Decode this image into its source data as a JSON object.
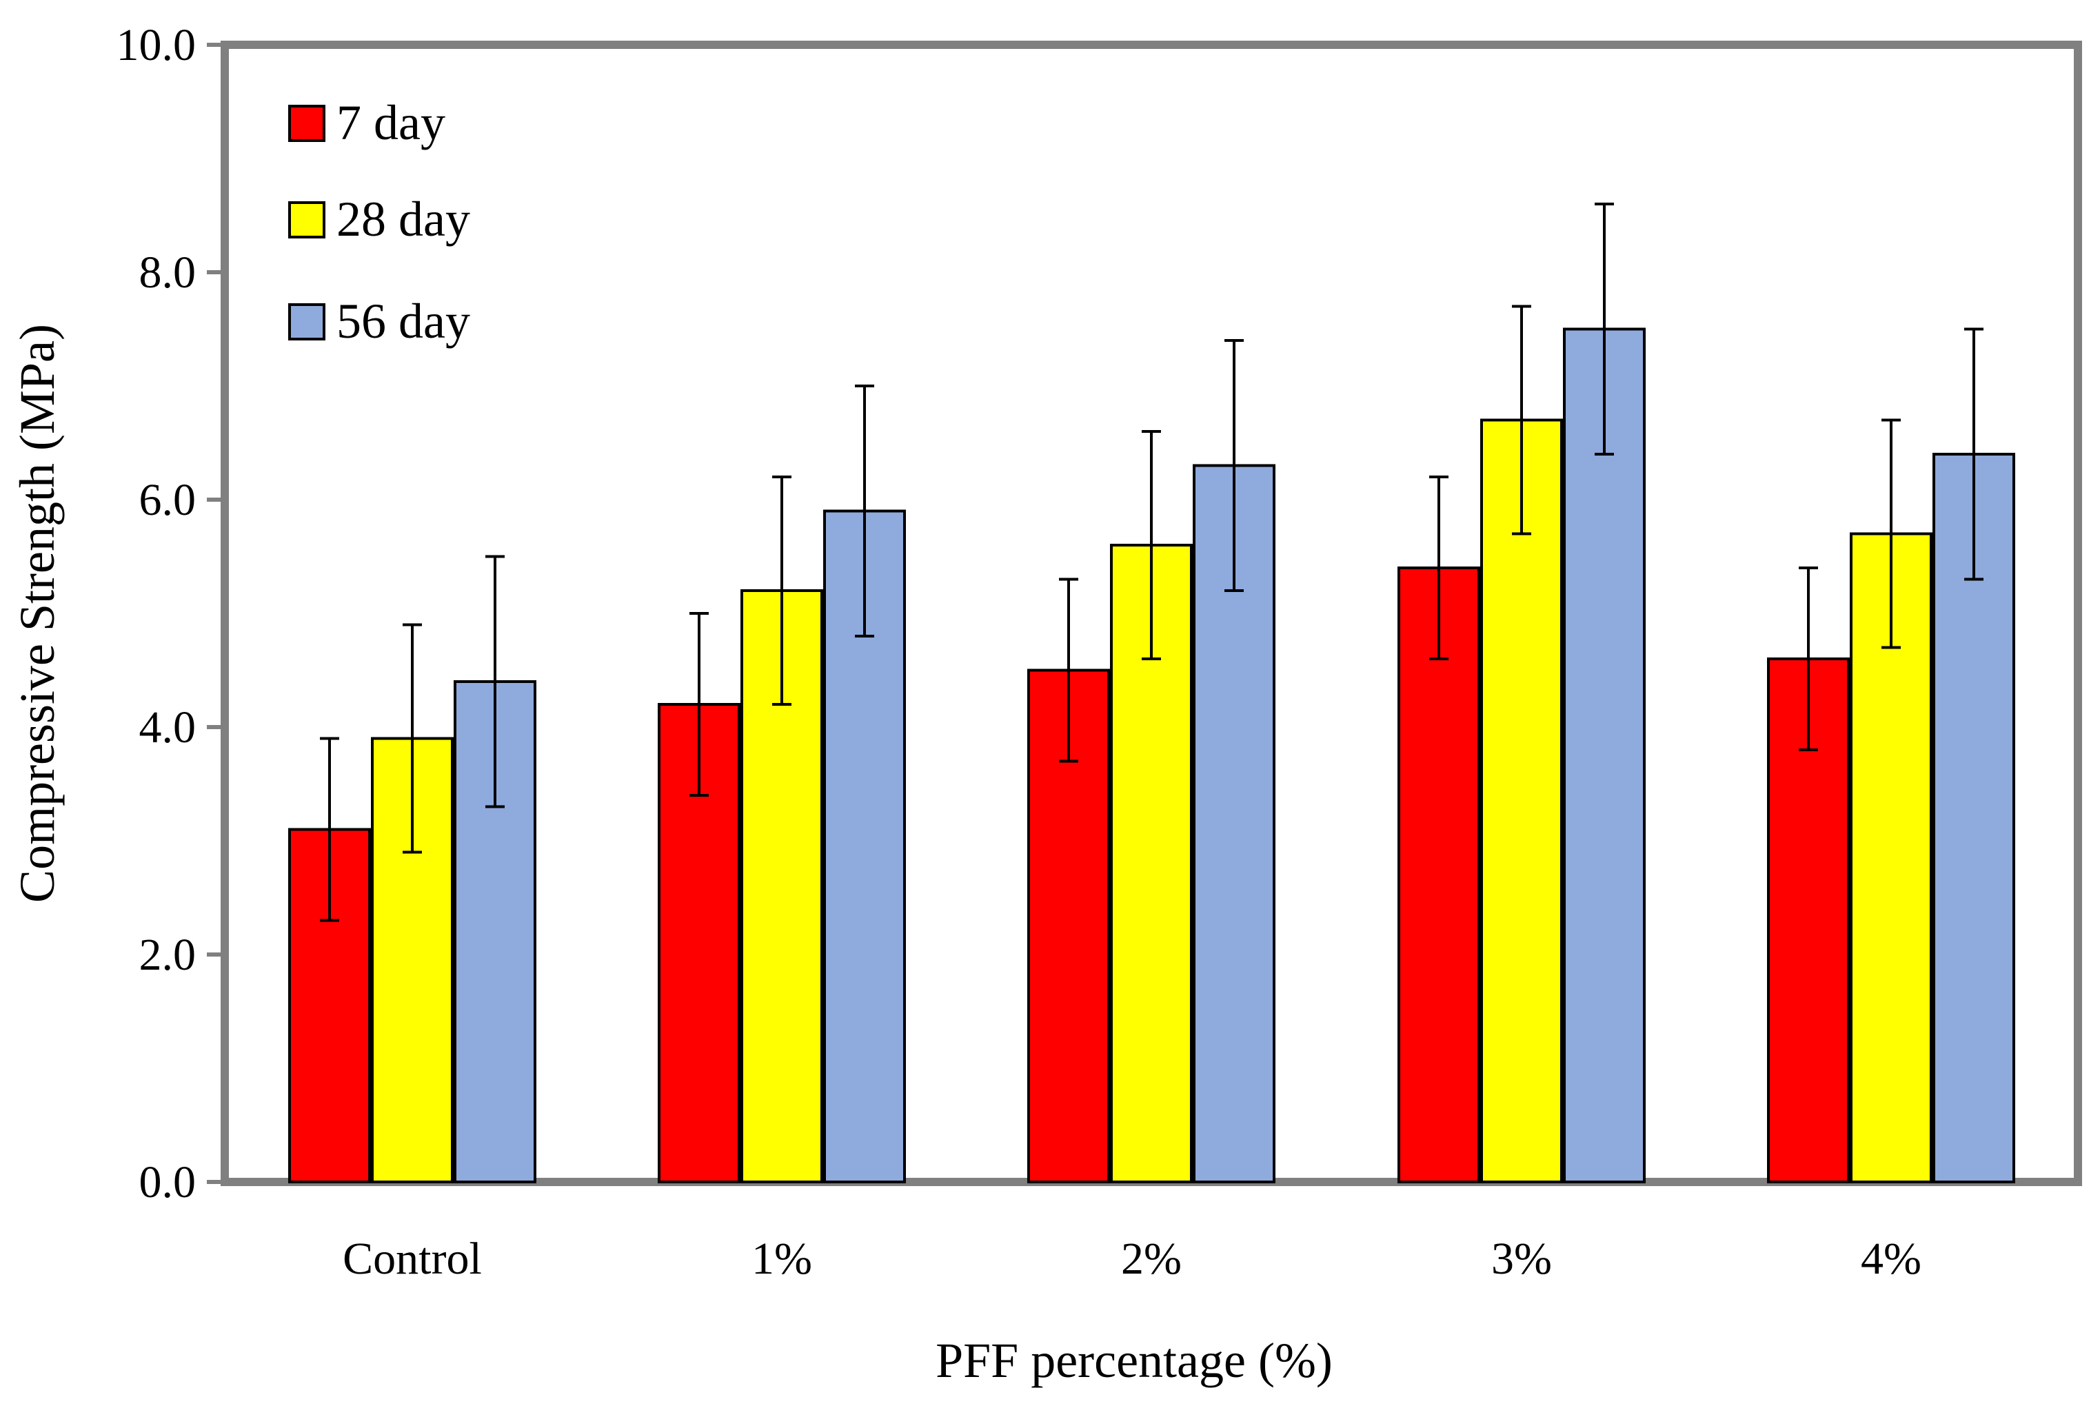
{
  "chart_data": {
    "type": "bar",
    "title": "",
    "xlabel": "PFF percentage (%)",
    "ylabel": "Compressive Strength (MPa)",
    "categories": [
      "Control",
      "1%",
      "2%",
      "3%",
      "4%"
    ],
    "ylim": [
      0,
      10
    ],
    "yticks": [
      0,
      2,
      4,
      6,
      8,
      10
    ],
    "ytick_labels": [
      "0.0",
      "2.0",
      "4.0",
      "6.0",
      "8.0",
      "10.0"
    ],
    "grid": false,
    "legend_position": "top-left",
    "series": [
      {
        "name": "7 day",
        "color": "#ff0000",
        "values": [
          3.1,
          4.2,
          4.5,
          5.4,
          4.6
        ],
        "errors": [
          0.8,
          0.8,
          0.8,
          0.8,
          0.8
        ]
      },
      {
        "name": "28 day",
        "color": "#ffff00",
        "values": [
          3.9,
          5.2,
          5.6,
          6.7,
          5.7
        ],
        "errors": [
          1.0,
          1.0,
          1.0,
          1.0,
          1.0
        ]
      },
      {
        "name": "56 day",
        "color": "#8faadc",
        "values": [
          4.4,
          5.9,
          6.3,
          7.5,
          6.4
        ],
        "errors": [
          1.1,
          1.1,
          1.1,
          1.1,
          1.1
        ]
      }
    ]
  }
}
